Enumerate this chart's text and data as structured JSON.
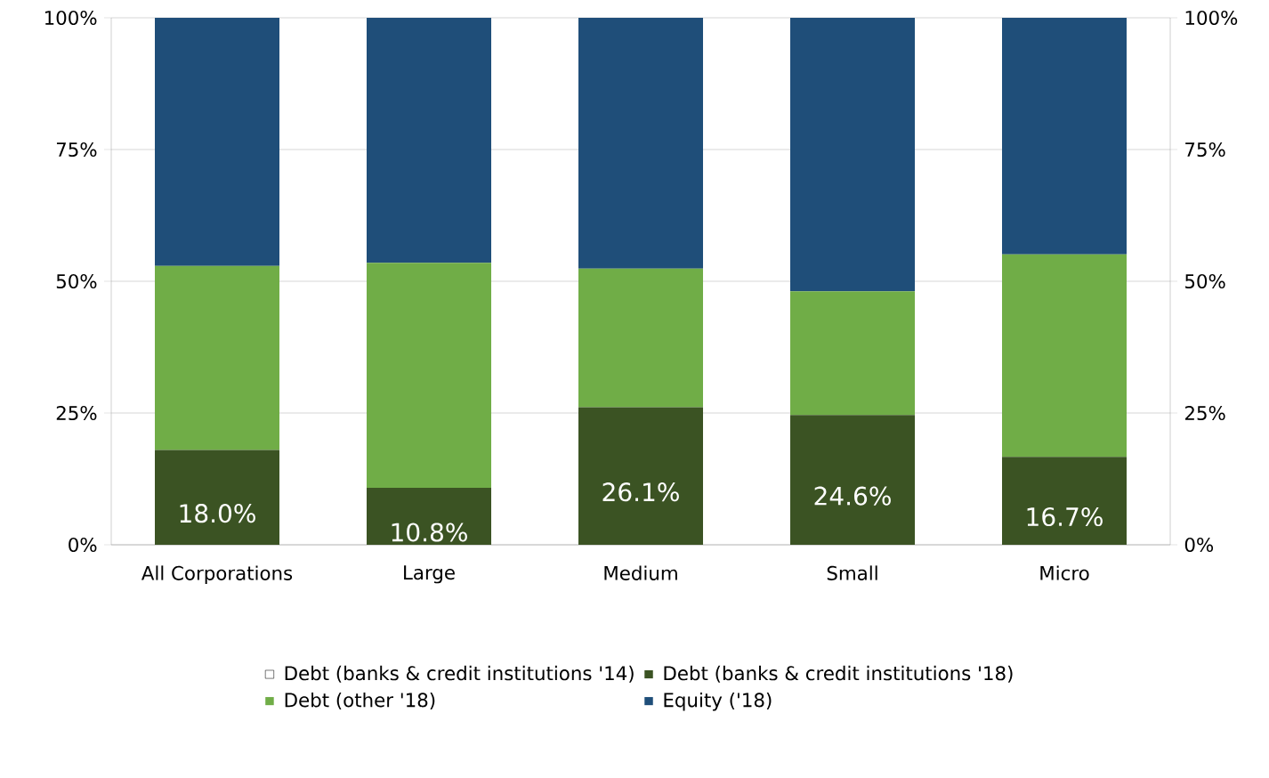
{
  "chart_data": {
    "type": "bar",
    "stacked": true,
    "categories": [
      "All Corporations",
      "Large",
      "Medium",
      "Small",
      "Micro"
    ],
    "series": [
      {
        "name": "Debt (banks & credit institutions '14)",
        "type": "line",
        "values": [
          null,
          null,
          null,
          null,
          null
        ]
      },
      {
        "name": "Debt (banks & credit institutions '18)",
        "color": "#3b5323",
        "values": [
          18.0,
          10.8,
          26.1,
          24.6,
          16.7
        ],
        "value_labels": [
          "18.0%",
          "10.8%",
          "26.1%",
          "24.6%",
          "16.7%"
        ]
      },
      {
        "name": "Debt (other '18)",
        "color": "#70ad47",
        "values": [
          34.9,
          42.7,
          26.3,
          23.5,
          38.4
        ]
      },
      {
        "name": "Equity ('18)",
        "color": "#1f4e79",
        "values": [
          47.1,
          46.5,
          47.6,
          51.9,
          44.9
        ]
      }
    ],
    "ylim": [
      0,
      100
    ],
    "yticks": [
      {
        "value": 0,
        "label": "0%"
      },
      {
        "value": 25,
        "label": "25%"
      },
      {
        "value": 50,
        "label": "50%"
      },
      {
        "value": 75,
        "label": "75%"
      },
      {
        "value": 100,
        "label": "100%"
      }
    ],
    "y2lim": [
      0,
      100
    ],
    "y2ticks": [
      {
        "value": 0,
        "label": "0%"
      },
      {
        "value": 25,
        "label": "25%"
      },
      {
        "value": 50,
        "label": "50%"
      },
      {
        "value": 75,
        "label": "75%"
      },
      {
        "value": 100,
        "label": "100%"
      }
    ],
    "grid": "y",
    "legend": "bottom"
  }
}
